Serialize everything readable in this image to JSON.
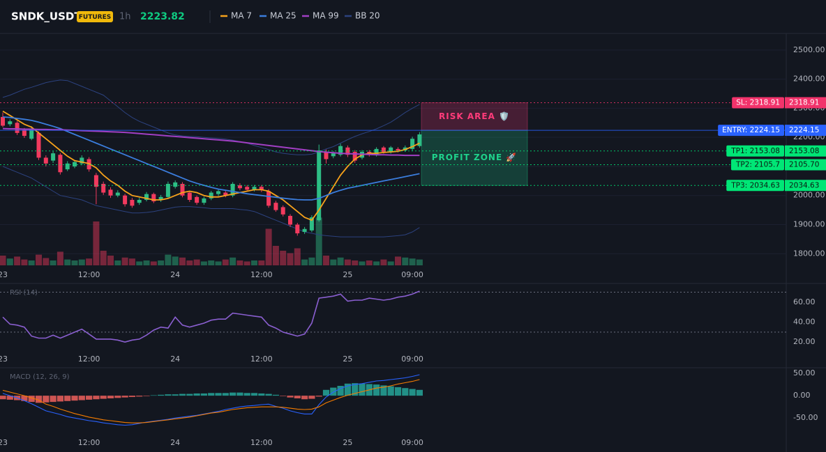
{
  "header": {
    "symbol": "SNDK_USDT",
    "badge": "FUTURES",
    "interval": "1h",
    "price": 2223.82
  },
  "chart_data": [
    {
      "type": "candlestick",
      "categories": [
        "23",
        null,
        null,
        null,
        null,
        null,
        null,
        null,
        null,
        null,
        null,
        null,
        "12:00",
        null,
        null,
        null,
        null,
        null,
        null,
        null,
        null,
        null,
        null,
        null,
        "24",
        null,
        null,
        null,
        null,
        null,
        null,
        null,
        null,
        null,
        null,
        null,
        "12:00",
        null,
        null,
        null,
        null,
        null,
        null,
        null,
        null,
        null,
        null,
        null,
        "25",
        null,
        null,
        null,
        null,
        null,
        null,
        null,
        null,
        "09:00",
        null
      ],
      "open": [
        2270,
        2245,
        2250,
        2225,
        2195,
        2215,
        2130,
        2120,
        2140,
        2090,
        2100,
        2110,
        2125,
        2070,
        2040,
        2020,
        2000,
        2000,
        1985,
        1975,
        1985,
        2005,
        1985,
        1995,
        2030,
        2040,
        2010,
        1995,
        1975,
        1990,
        2005,
        2010,
        2000,
        2035,
        2030,
        2020,
        2030,
        2015,
        1975,
        1960,
        1930,
        1900,
        1875,
        1880,
        1915,
        2150,
        2135,
        2140,
        2165,
        2150,
        2130,
        2150,
        2140,
        2165,
        2150,
        2160,
        2155,
        2160,
        2170
      ],
      "high": [
        2285,
        2262,
        2256,
        2232,
        2238,
        2220,
        2138,
        2152,
        2146,
        2118,
        2122,
        2138,
        2132,
        2078,
        2048,
        2028,
        2018,
        2006,
        1992,
        1992,
        2012,
        2010,
        2002,
        2048,
        2052,
        2046,
        2016,
        2000,
        1996,
        2016,
        2022,
        2016,
        2046,
        2042,
        2036,
        2036,
        2036,
        2022,
        1982,
        1966,
        1936,
        1906,
        1892,
        1932,
        2175,
        2158,
        2152,
        2178,
        2172,
        2156,
        2156,
        2156,
        2166,
        2170,
        2170,
        2166,
        2172,
        2202,
        2218
      ],
      "low": [
        2235,
        2238,
        2208,
        2198,
        2190,
        2122,
        2100,
        2112,
        2072,
        2084,
        2094,
        2104,
        2082,
        1970,
        2002,
        1992,
        1994,
        1962,
        1958,
        1968,
        1980,
        1974,
        1978,
        1990,
        2024,
        1994,
        1978,
        1968,
        1968,
        1984,
        1998,
        1994,
        1994,
        2018,
        2014,
        2014,
        2012,
        1958,
        1944,
        1928,
        1892,
        1862,
        1868,
        1874,
        1910,
        2110,
        2128,
        2134,
        2132,
        2112,
        2124,
        2134,
        2134,
        2144,
        2144,
        2148,
        2150,
        2154,
        2164
      ],
      "close": [
        2240,
        2255,
        2215,
        2205,
        2230,
        2130,
        2110,
        2145,
        2080,
        2110,
        2115,
        2130,
        2090,
        2030,
        2010,
        2000,
        2010,
        1970,
        1965,
        1985,
        2005,
        1980,
        1995,
        2040,
        2045,
        2000,
        1985,
        1975,
        1990,
        2010,
        2015,
        2000,
        2040,
        2025,
        2020,
        2030,
        2020,
        1965,
        1950,
        1935,
        1900,
        1870,
        1885,
        1925,
        2155,
        2125,
        2145,
        2170,
        2140,
        2120,
        2150,
        2140,
        2160,
        2150,
        2165,
        2155,
        2165,
        2195,
        2210
      ],
      "up_color": "#2ebd85",
      "down_color": "#f23a5e",
      "volume": {
        "values": [
          20,
          14,
          18,
          12,
          10,
          22,
          15,
          10,
          28,
          12,
          10,
          12,
          14,
          90,
          30,
          20,
          10,
          16,
          14,
          8,
          10,
          8,
          10,
          22,
          18,
          16,
          10,
          12,
          8,
          10,
          8,
          12,
          16,
          10,
          8,
          10,
          10,
          75,
          40,
          30,
          25,
          35,
          12,
          16,
          98,
          20,
          12,
          16,
          12,
          10,
          8,
          10,
          8,
          12,
          8,
          18,
          16,
          14,
          12
        ]
      },
      "series": [
        {
          "name": "MA 7",
          "color": "#f7a21b",
          "values": [
            2290,
            2275,
            2260,
            2245,
            2235,
            2215,
            2195,
            2175,
            2155,
            2135,
            2120,
            2115,
            2110,
            2095,
            2070,
            2050,
            2035,
            2015,
            2000,
            1995,
            1990,
            1985,
            1985,
            1990,
            2000,
            2010,
            2015,
            2010,
            2000,
            1995,
            1995,
            2000,
            2005,
            2010,
            2015,
            2020,
            2020,
            2015,
            2000,
            1985,
            1965,
            1945,
            1925,
            1915,
            1950,
            1990,
            2030,
            2070,
            2100,
            2125,
            2140,
            2145,
            2145,
            2148,
            2150,
            2152,
            2158,
            2168,
            2180
          ]
        },
        {
          "name": "MA 25",
          "color": "#3b7ddd",
          "values": [
            2270,
            2268,
            2265,
            2262,
            2258,
            2252,
            2245,
            2238,
            2230,
            2220,
            2210,
            2200,
            2190,
            2180,
            2170,
            2160,
            2150,
            2140,
            2130,
            2120,
            2110,
            2100,
            2090,
            2080,
            2070,
            2060,
            2050,
            2042,
            2035,
            2028,
            2022,
            2018,
            2014,
            2010,
            2006,
            2003,
            2000,
            1997,
            1994,
            1991,
            1988,
            1986,
            1985,
            1985,
            1990,
            2000,
            2010,
            2018,
            2025,
            2030,
            2035,
            2040,
            2045,
            2050,
            2055,
            2060,
            2065,
            2070,
            2075
          ]
        },
        {
          "name": "MA 99",
          "color": "#a13fc4",
          "values": [
            2230,
            2229,
            2229,
            2228,
            2228,
            2227,
            2227,
            2226,
            2226,
            2225,
            2224,
            2223,
            2222,
            2221,
            2220,
            2219,
            2218,
            2217,
            2215,
            2213,
            2211,
            2209,
            2207,
            2205,
            2203,
            2201,
            2199,
            2197,
            2195,
            2193,
            2191,
            2189,
            2187,
            2184,
            2181,
            2178,
            2175,
            2172,
            2169,
            2166,
            2163,
            2160,
            2157,
            2154,
            2151,
            2149,
            2147,
            2145,
            2144,
            2143,
            2142,
            2141,
            2140,
            2140,
            2139,
            2139,
            2138,
            2138,
            2138
          ]
        },
        {
          "name": "BB 20",
          "color": "#2c427f",
          "upper": [
            2337,
            2345,
            2355,
            2365,
            2372,
            2380,
            2388,
            2393,
            2397,
            2395,
            2385,
            2375,
            2365,
            2355,
            2345,
            2325,
            2305,
            2285,
            2268,
            2255,
            2245,
            2235,
            2225,
            2215,
            2208,
            2205,
            2203,
            2202,
            2200,
            2198,
            2196,
            2194,
            2190,
            2185,
            2180,
            2172,
            2165,
            2158,
            2150,
            2145,
            2142,
            2140,
            2140,
            2142,
            2150,
            2160,
            2168,
            2180,
            2192,
            2203,
            2212,
            2220,
            2229,
            2240,
            2252,
            2268,
            2285,
            2300,
            2313
          ],
          "lower": [
            2100,
            2090,
            2080,
            2070,
            2060,
            2045,
            2030,
            2015,
            2000,
            1995,
            1990,
            1985,
            1975,
            1965,
            1960,
            1955,
            1950,
            1945,
            1940,
            1940,
            1942,
            1945,
            1950,
            1955,
            1960,
            1962,
            1962,
            1960,
            1958,
            1955,
            1955,
            1955,
            1955,
            1952,
            1950,
            1945,
            1935,
            1925,
            1915,
            1905,
            1895,
            1885,
            1875,
            1870,
            1865,
            1862,
            1860,
            1858,
            1858,
            1858,
            1858,
            1858,
            1858,
            1858,
            1860,
            1862,
            1865,
            1875,
            1890
          ]
        }
      ],
      "ylim": [
        1760,
        2557
      ],
      "yticks": [
        {
          "value": 1800,
          "label": "1800.00"
        },
        {
          "value": 1900,
          "label": "1900.00"
        },
        {
          "value": 2000,
          "label": "2000.00"
        },
        {
          "value": 2100,
          "label": "2100.00"
        },
        {
          "value": 2200,
          "label": "2200.00"
        },
        {
          "value": 2300,
          "label": "2300.00"
        },
        {
          "value": 2400,
          "label": "2400.00"
        },
        {
          "value": 2500,
          "label": "2500.00"
        }
      ],
      "grid": true,
      "levels": [
        {
          "label": "SL: 2318.91",
          "value": 2318.91,
          "value_label": "2318.91",
          "color": "#f2336b",
          "text_color": "#ffffff",
          "style": "dotted"
        },
        {
          "label": "ENTRY: 2224.15",
          "value": 2224.15,
          "value_label": "2224.15",
          "color": "#2962ff",
          "text_color": "#ffffff",
          "style": "solid"
        },
        {
          "label": "TP1: 2153.08",
          "value": 2153.08,
          "value_label": "2153.08",
          "color": "#00e676",
          "text_color": "#0b1a12",
          "style": "dotted"
        },
        {
          "label": "TP2: 2105.7",
          "value": 2105.7,
          "value_label": "2105.70",
          "color": "#00e676",
          "text_color": "#0b1a12",
          "style": "dotted"
        },
        {
          "label": "TP3: 2034.63",
          "value": 2034.63,
          "value_label": "2034.63",
          "color": "#00e676",
          "text_color": "#0b1a12",
          "style": "dotted"
        }
      ],
      "zones": [
        {
          "label": "RISK AREA 🛡️",
          "color": "#ff3b7a"
        },
        {
          "label": "PROFIT ZONE 🚀",
          "color": "#1fd18b"
        }
      ]
    },
    {
      "type": "line",
      "title": "RSI (14)",
      "series": [
        {
          "color": "#8a5fd0",
          "values": [
            45,
            38,
            37,
            35,
            26,
            24,
            24,
            27,
            24,
            27,
            30,
            33,
            28,
            23,
            23,
            23,
            22,
            20,
            22,
            23,
            27,
            32,
            35,
            34,
            45,
            37,
            35,
            37,
            39,
            42,
            43,
            43,
            49,
            48,
            47,
            46,
            45,
            37,
            34,
            30,
            28,
            26,
            28,
            39,
            64,
            65,
            66,
            68,
            61,
            62,
            62,
            64,
            63,
            62,
            63,
            65,
            66,
            68,
            71
          ]
        }
      ],
      "ylim": [
        9,
        78
      ],
      "yticks": [
        {
          "value": 20,
          "label": "20.00"
        },
        {
          "value": 40,
          "label": "40.00"
        },
        {
          "value": 60,
          "label": "60.00"
        }
      ],
      "bands": [
        30,
        70
      ]
    },
    {
      "type": "macd",
      "title": "MACD (12, 26, 9)",
      "series": [
        {
          "color": "#2962ff",
          "values": [
            5,
            0,
            -5,
            -11,
            -18,
            -26,
            -34,
            -38,
            -42,
            -47,
            -50,
            -53,
            -56,
            -58,
            -61,
            -63,
            -65,
            -66,
            -65,
            -62,
            -59,
            -57,
            -55,
            -53,
            -50,
            -48,
            -46,
            -44,
            -41,
            -38,
            -35,
            -31,
            -28,
            -25,
            -23,
            -22,
            -20,
            -19,
            -24,
            -28,
            -34,
            -38,
            -41,
            -41,
            -20,
            -3,
            8,
            16,
            22,
            25,
            27,
            30,
            33,
            34,
            36,
            38,
            40,
            43,
            47
          ]
        },
        {
          "color": "#f57c00",
          "values": [
            12,
            8,
            4,
            0,
            -5,
            -10,
            -19,
            -24,
            -30,
            -35,
            -40,
            -44,
            -48,
            -51,
            -54,
            -56,
            -58,
            -60,
            -61,
            -61,
            -60,
            -58,
            -56,
            -54,
            -52,
            -50,
            -48,
            -45,
            -42,
            -39,
            -37,
            -34,
            -31,
            -29,
            -27,
            -26,
            -25,
            -25,
            -25,
            -26,
            -28,
            -30,
            -31,
            -30,
            -25,
            -16,
            -10,
            -4,
            1,
            5,
            9,
            13,
            17,
            19,
            22,
            26,
            29,
            32,
            36
          ]
        }
      ],
      "histogram": {
        "up_color": "#26a69a",
        "down_color": "#f0605d",
        "values": [
          -8,
          -9,
          -10,
          -12,
          -14,
          -16,
          -15,
          -14,
          -13,
          -12,
          -11,
          -10,
          -9,
          -8,
          -7,
          -6,
          -5,
          -4,
          -3,
          -2,
          -1,
          1,
          2,
          3,
          3,
          4,
          4,
          5,
          5,
          6,
          6,
          6,
          7,
          7,
          6,
          6,
          5,
          4,
          2,
          -1,
          -4,
          -6,
          -8,
          -7,
          -2,
          13,
          18,
          22,
          27,
          28,
          27,
          26,
          25,
          23,
          21,
          19,
          17,
          15,
          13
        ]
      },
      "ylim": [
        -84,
        61
      ],
      "yticks": [
        {
          "value": -50,
          "label": "-50.00"
        },
        {
          "value": 0,
          "label": "0.00"
        },
        {
          "value": 50,
          "label": "50.00"
        }
      ]
    }
  ]
}
